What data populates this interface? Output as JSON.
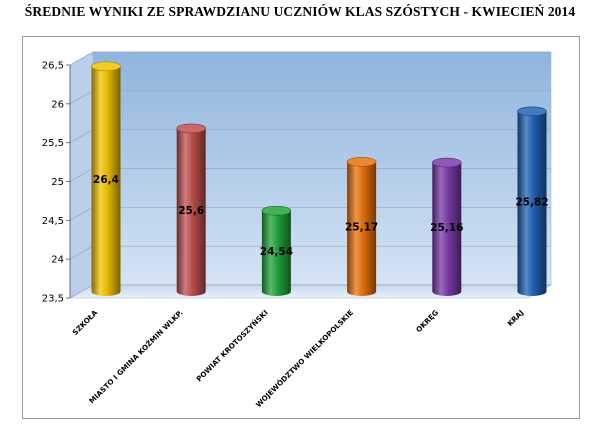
{
  "title": "ŚREDNIE WYNIKI ZE SPRAWDZIANU UCZNIÓW KLAS SZÓSTYCH - KWIECIEŃ 2014",
  "chart_data": {
    "type": "bar",
    "title": "",
    "xlabel": "",
    "ylabel": "",
    "ylim": [
      23.5,
      26.5
    ],
    "yticks": [
      "23,5",
      "24",
      "24,5",
      "25",
      "25,5",
      "26",
      "26,5"
    ],
    "grid": true,
    "legend": "none",
    "categories": [
      "SZKOŁA",
      "MIASTO I GMINA KOŹMIN WLKP.",
      "POWIAT KROTOSZYŃSKI",
      "WOJEWÓDZTWO WIELKOPOLSKIE",
      "OKRĘG",
      "KRAJ"
    ],
    "values": [
      26.4,
      25.6,
      24.54,
      25.17,
      25.16,
      25.82
    ],
    "value_labels": [
      "26,4",
      "25,6",
      "24,54",
      "25,17",
      "25,16",
      "25,82"
    ],
    "colors": [
      "#f2c200",
      "#c0504d",
      "#21a33b",
      "#e9720e",
      "#7a3aa8",
      "#1f63b5"
    ]
  }
}
